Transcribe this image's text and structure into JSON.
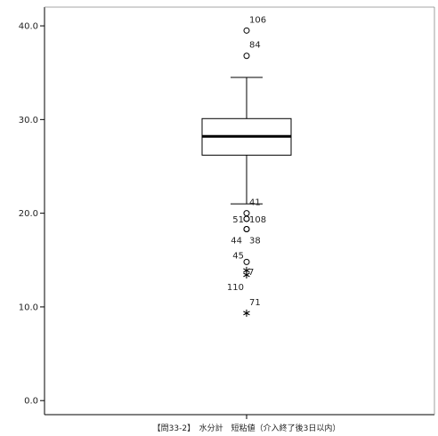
{
  "chart_data": {
    "type": "boxplot",
    "xlabel": "【問33-2】　水分計　短粘値（介入終了後3日以内）",
    "ylim": [
      -1.5,
      42.0
    ],
    "yticks": [
      0.0,
      10.0,
      20.0,
      30.0,
      40.0
    ],
    "ytick_labels": [
      "0.0",
      "10.0",
      "20.0",
      "30.0",
      "40.0"
    ],
    "grid": false,
    "box": {
      "whisker_low": 21.0,
      "q1": 26.2,
      "median": 28.2,
      "q3": 30.1,
      "whisker_high": 34.5
    },
    "outliers": [
      {
        "label": "106",
        "value": 39.5,
        "marker": "circle"
      },
      {
        "label": "84",
        "value": 36.8,
        "marker": "circle"
      },
      {
        "label": "41",
        "value": 20.0,
        "marker": "circle"
      },
      {
        "label": "51",
        "value": 19.4,
        "marker": "circle"
      },
      {
        "label": "108",
        "value": 19.4,
        "marker": "circle"
      },
      {
        "label": "44",
        "value": 18.3,
        "marker": "circle"
      },
      {
        "label": "38",
        "value": 18.3,
        "marker": "circle"
      },
      {
        "label": "45",
        "value": 14.8,
        "marker": "circle"
      },
      {
        "label": "7",
        "value": 14.0,
        "marker": "star"
      },
      {
        "label": "110",
        "value": 13.5,
        "marker": "star"
      },
      {
        "label": "71",
        "value": 9.4,
        "marker": "star"
      }
    ]
  }
}
